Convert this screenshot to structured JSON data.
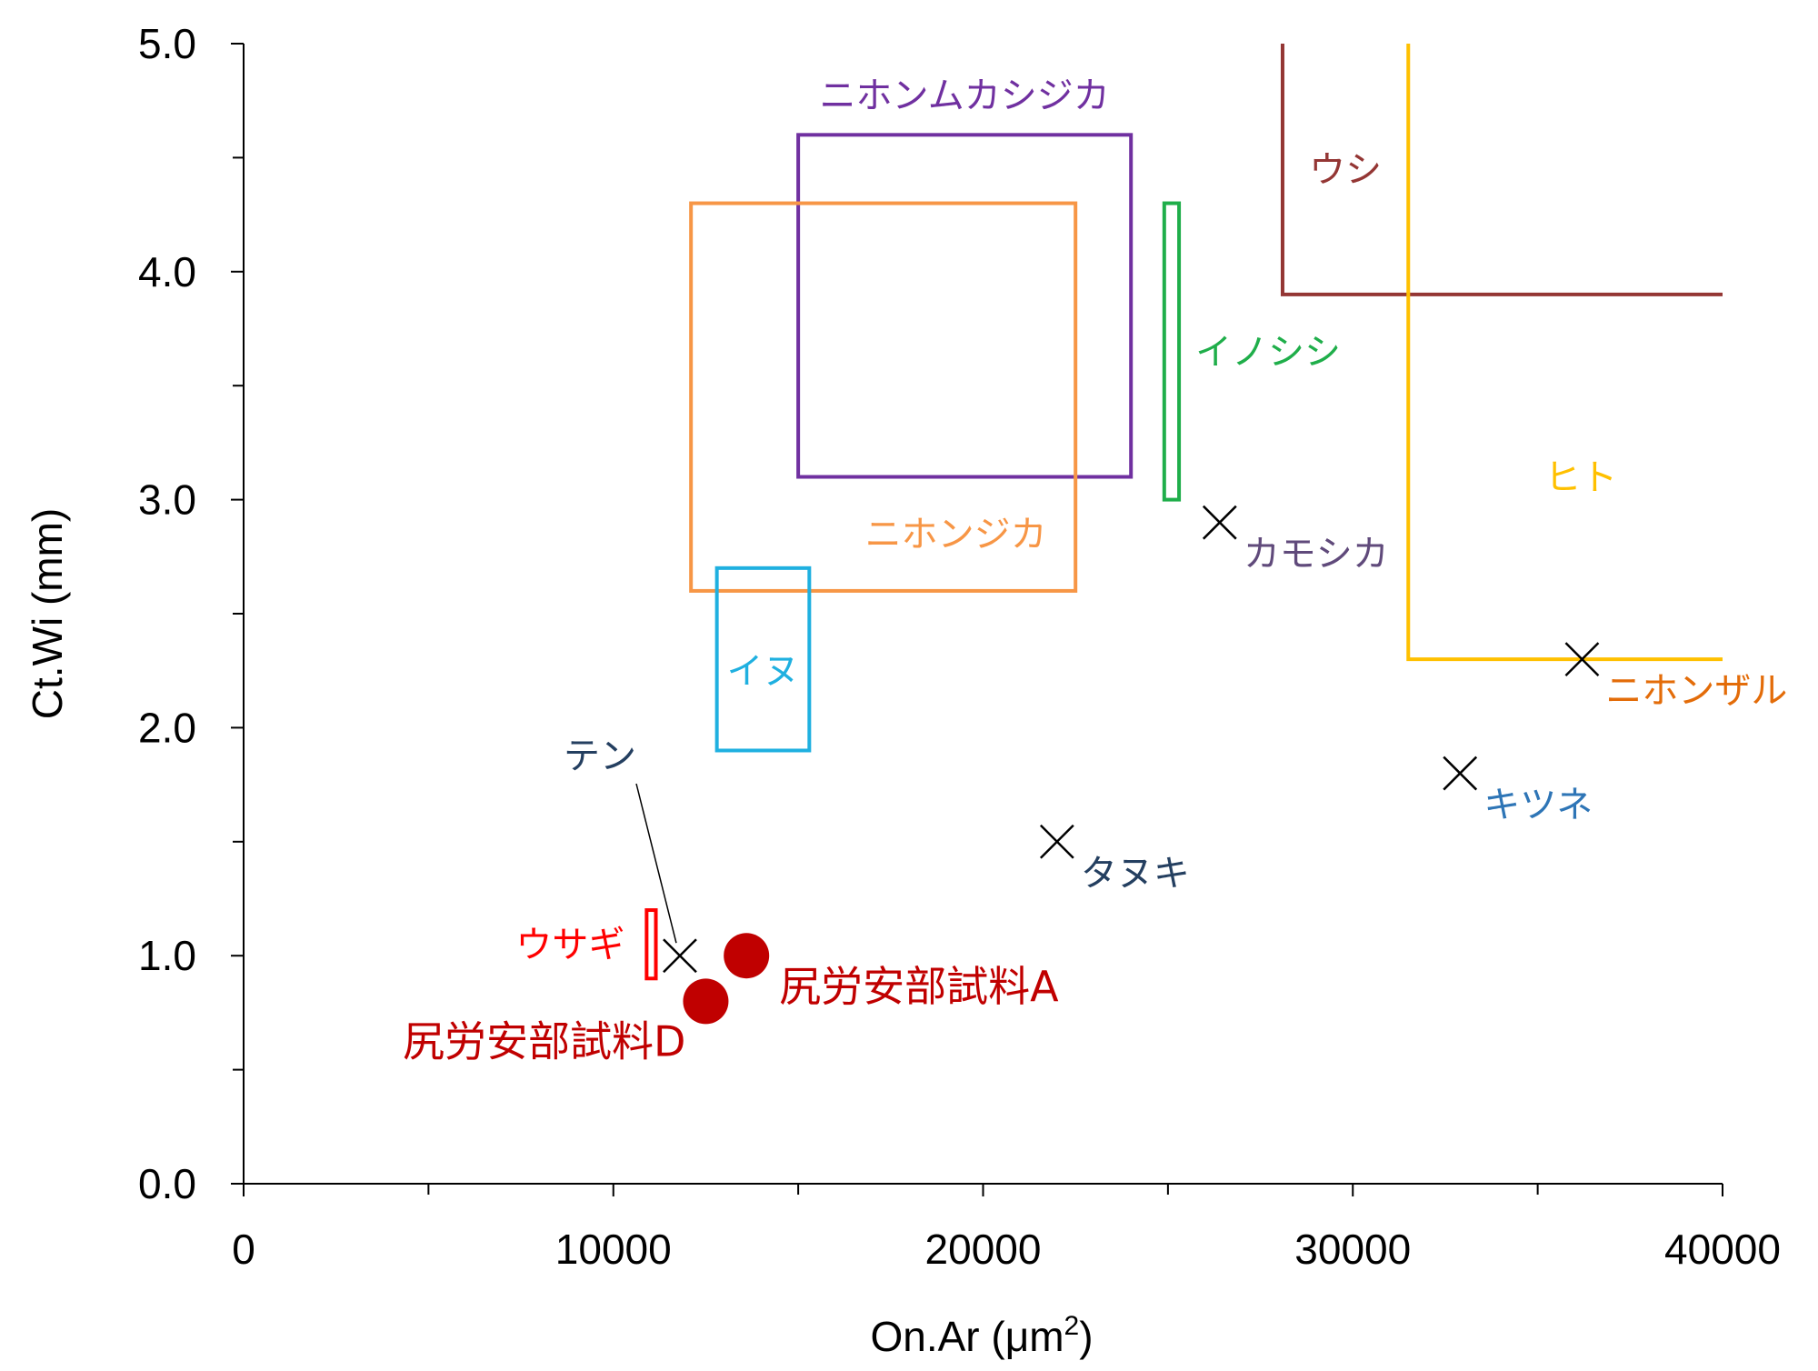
{
  "chart_data": {
    "type": "scatter",
    "xlabel": "On.Ar (μm",
    "xlabel_sup": "2",
    "xlabel_close": ")",
    "ylabel": "Ct.Wi (mm)",
    "xlim": [
      0,
      40000
    ],
    "ylim": [
      0,
      5
    ],
    "x_ticks": [
      "0",
      "10000",
      "20000",
      "30000",
      "40000"
    ],
    "y_ticks": [
      "0.0",
      "1.0",
      "2.0",
      "3.0",
      "4.0",
      "5.0"
    ],
    "grid": false,
    "regions": [
      {
        "name": "ニホンムカシジカ",
        "shape": "rect",
        "x": [
          15000,
          24000
        ],
        "y": [
          3.1,
          4.6
        ],
        "color": "#7030a0"
      },
      {
        "name": "ニホンジカ",
        "shape": "rect",
        "x": [
          12100,
          22500
        ],
        "y": [
          2.6,
          4.3
        ],
        "color": "#f79646"
      },
      {
        "name": "イヌ",
        "shape": "rect",
        "x": [
          12800,
          15300
        ],
        "y": [
          1.9,
          2.7
        ],
        "color": "#1fb0e0"
      },
      {
        "name": "イノシシ",
        "shape": "rect",
        "x": [
          24900,
          25300
        ],
        "y": [
          3.0,
          4.3
        ],
        "color": "#1fae4a"
      },
      {
        "name": "ウサギ",
        "shape": "rect",
        "x": [
          10900,
          11150
        ],
        "y": [
          0.9,
          1.2
        ],
        "color": "#ff0000"
      },
      {
        "name": "ウシ",
        "shape": "open-corner",
        "x_from": 28100,
        "y_from": 3.9,
        "color": "#943634"
      },
      {
        "name": "ヒト",
        "shape": "open-corner",
        "x_from": 31500,
        "y_from": 2.3,
        "color": "#ffc000"
      }
    ],
    "reference_points": [
      {
        "name": "テン",
        "x": 11800,
        "y": 1.0,
        "color": "#243f60"
      },
      {
        "name": "カモシカ",
        "x": 26400,
        "y": 2.9,
        "color": "#604a7b"
      },
      {
        "name": "タヌキ",
        "x": 22000,
        "y": 1.5,
        "color": "#243f60"
      },
      {
        "name": "キツネ",
        "x": 32900,
        "y": 1.8,
        "color": "#2e75b6"
      },
      {
        "name": "ニホンザル",
        "x": 36200,
        "y": 2.3,
        "color": "#e36c09"
      }
    ],
    "samples": [
      {
        "name": "尻労安部試料A",
        "x": 13600,
        "y": 1.0,
        "color": "#c00000"
      },
      {
        "name": "尻労安部試料D",
        "x": 12500,
        "y": 0.8,
        "color": "#c00000"
      }
    ]
  }
}
